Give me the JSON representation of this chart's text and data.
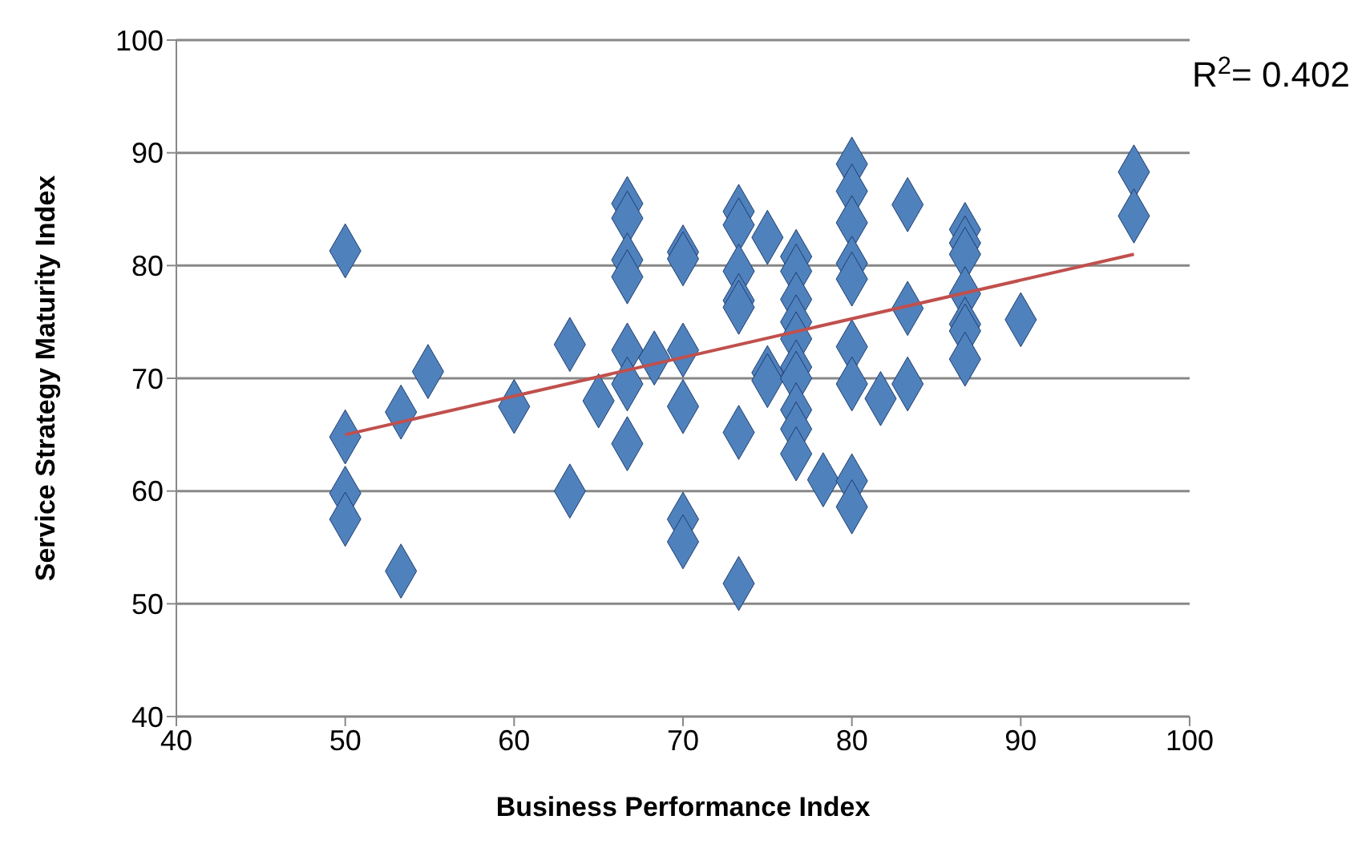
{
  "chart_data": {
    "type": "scatter",
    "xlabel": "Business Performance Index",
    "ylabel": "Service Strategy Maturity Index",
    "xlim": [
      40,
      100
    ],
    "xticks": [
      40,
      50,
      60,
      70,
      80,
      90,
      100
    ],
    "ylim": [
      40,
      100
    ],
    "yticks": [
      40,
      50,
      60,
      70,
      80,
      90,
      100
    ],
    "grid": "y",
    "marker": "diamond",
    "annotations": [
      "R$^{2}$= 0.402"
    ],
    "series": [
      {
        "color": "#4f81bd",
        "x": [
          50,
          50,
          50,
          50,
          53.3,
          53.3,
          54.9,
          60,
          63.3,
          63.3,
          65,
          66.7,
          66.7,
          66.7,
          66.7,
          66.7,
          66.7,
          66.7,
          68.3,
          70,
          70,
          70,
          70,
          70,
          70,
          73.3,
          73.3,
          73.3,
          73.3,
          73.3,
          73.3,
          73.3,
          75,
          75,
          75,
          76.7,
          76.7,
          76.7,
          76.7,
          76.7,
          76.7,
          76.7,
          76.7,
          76.7,
          76.7,
          78.3,
          80,
          80,
          80,
          80,
          80,
          80,
          80,
          80,
          80,
          81.7,
          83.3,
          83.3,
          83.3,
          86.7,
          86.7,
          86.7,
          86.7,
          86.7,
          86.7,
          86.7,
          90,
          96.7,
          96.7
        ],
        "values": [
          81.3,
          64.8,
          59.8,
          57.5,
          67,
          52.9,
          70.6,
          67.5,
          73,
          60,
          68,
          85.5,
          84.2,
          80.5,
          79,
          72.5,
          69.5,
          64.2,
          71.8,
          81.2,
          80.6,
          72.5,
          67.5,
          57.5,
          55.5,
          84.8,
          83.6,
          79.5,
          76.9,
          76.3,
          65.2,
          51.8,
          82.5,
          70.5,
          69.8,
          80.8,
          79.5,
          77,
          75,
          73.5,
          71,
          70,
          67.2,
          65.5,
          63.3,
          61,
          89,
          86.6,
          83.8,
          80.2,
          78.8,
          72.8,
          69.5,
          60.9,
          58.6,
          68.2,
          85.4,
          76.2,
          69.5,
          83.2,
          82,
          81,
          77.5,
          74.8,
          74.2,
          71.7,
          75.2,
          88.3,
          84.4
        ]
      },
      {
        "type": "line",
        "color": "#c0504d",
        "marker": "none",
        "x": [
          50,
          96.7
        ],
        "values": [
          65,
          81
        ]
      }
    ]
  }
}
